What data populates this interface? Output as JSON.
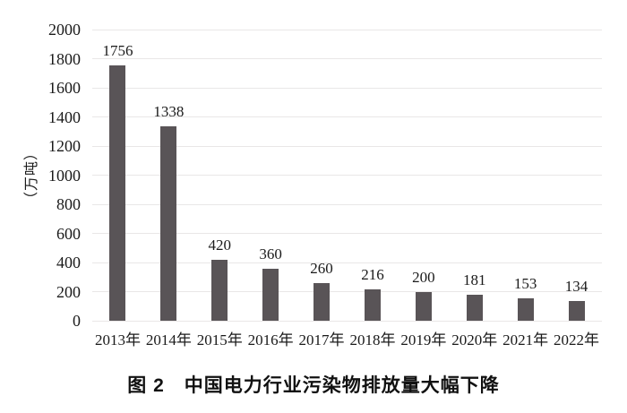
{
  "figure": {
    "caption": "图 2　中国电力行业污染物排放量大幅下降"
  },
  "chart_data": {
    "type": "bar",
    "title": "图 2　中国电力行业污染物排放量大幅下降",
    "categories": [
      "2013年",
      "2014年",
      "2015年",
      "2016年",
      "2017年",
      "2018年",
      "2019年",
      "2020年",
      "2021年",
      "2022年"
    ],
    "values": [
      1756,
      1338,
      420,
      360,
      260,
      216,
      200,
      181,
      153,
      134
    ],
    "data_labels": [
      1756,
      1338,
      420,
      360,
      260,
      216,
      200,
      181,
      153,
      134
    ],
    "xlabel": "",
    "ylabel": "（万吨）",
    "ylim": [
      0,
      2000
    ],
    "ytick_step": 200,
    "grid": true,
    "legend_position": "none",
    "colors": {
      "bar": "#595457",
      "gridline": "#e9e7e7",
      "text": "#1a1a1a",
      "background": "#ffffff"
    }
  }
}
